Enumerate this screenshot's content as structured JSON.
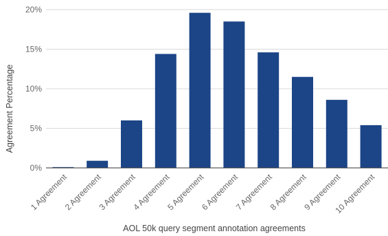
{
  "chart_data": {
    "type": "bar",
    "title": "",
    "xlabel": "AOL 50k query segment annotation agreements",
    "ylabel": "Agreement Percentage",
    "categories": [
      "1 Agreement",
      "2 Agreement",
      "3 Agreement",
      "4 Agreement",
      "5 Agreement",
      "6 Agreement",
      "7 Agreement",
      "8 Agreement",
      "9 Agreement",
      "10 Agreement"
    ],
    "values": [
      0.1,
      0.9,
      6.0,
      14.4,
      19.6,
      18.5,
      14.6,
      11.5,
      8.6,
      5.4
    ],
    "ylim": [
      0,
      20
    ],
    "yticks": [
      0,
      5,
      10,
      15,
      20
    ],
    "ytick_labels": [
      "0%",
      "5%",
      "10%",
      "15%",
      "20%"
    ],
    "grid": true,
    "legend": "none",
    "bar_color": "#1c4587",
    "grid_color": "#d9d9d9",
    "axis_color": "#333333"
  }
}
